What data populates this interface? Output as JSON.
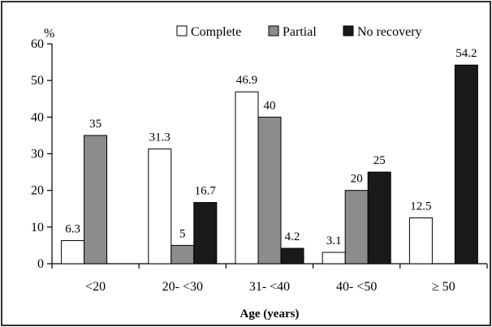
{
  "chart_data": {
    "type": "bar",
    "title": "",
    "y_unit_label": "%",
    "xlabel": "Age (years)",
    "ylabel": "",
    "ylim": [
      0,
      60
    ],
    "yticks": [
      0,
      10,
      20,
      30,
      40,
      50,
      60
    ],
    "grid": false,
    "legend_position": "top-right",
    "categories": [
      "<20",
      "20- <30",
      "31- <40",
      "40- <50",
      "≥ 50"
    ],
    "series": [
      {
        "name": "Complete",
        "color": "#ffffff",
        "values": [
          6.3,
          31.3,
          46.9,
          3.1,
          12.5
        ],
        "labels": [
          "6.3",
          "31.3",
          "46.9",
          "3.1",
          "12.5"
        ]
      },
      {
        "name": "Partial",
        "color": "#8c8c8c",
        "values": [
          35,
          5,
          40,
          20,
          null
        ],
        "labels": [
          "35",
          "5",
          "40",
          "20",
          ""
        ]
      },
      {
        "name": "No recovery",
        "color": "#1a1a1a",
        "values": [
          null,
          16.7,
          4.2,
          25,
          54.2
        ],
        "labels": [
          "",
          "16.7",
          "4.2",
          "25",
          "54.2"
        ]
      }
    ]
  }
}
